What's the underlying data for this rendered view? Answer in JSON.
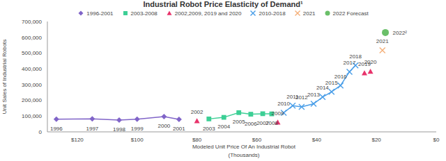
{
  "chart_data": {
    "type": "scatter",
    "title": "Industrial Robot Price Elasticity of Demand¹",
    "xlabel": "Modeled Unit Price Of An Industrial Robot\n(Thousands)",
    "ylabel": "Unit Sales of Industrial Robots",
    "xlim": [
      130,
      0
    ],
    "xticks": [
      {
        "value": 120,
        "label": "$120"
      },
      {
        "value": 100,
        "label": "$100"
      },
      {
        "value": 80,
        "label": "$80"
      },
      {
        "value": 60,
        "label": "$60"
      },
      {
        "value": 40,
        "label": "$40"
      },
      {
        "value": 20,
        "label": "$20"
      },
      {
        "value": 0,
        "label": "$0"
      }
    ],
    "ylim": [
      0,
      700000
    ],
    "yticks": [
      0,
      {
        "value": 100000,
        "label": "100,000"
      },
      {
        "value": 200000,
        "label": "200,000"
      },
      {
        "value": 300000,
        "label": "300,000"
      },
      {
        "value": 400000,
        "label": "400,000"
      },
      {
        "value": 500000,
        "label": "500,000"
      },
      {
        "value": 600000,
        "label": "600,000"
      },
      {
        "value": 700000,
        "label": "700,000"
      }
    ],
    "grid": false,
    "legend": "top",
    "series": [
      {
        "name": "1996-2001",
        "color": "#8064c8",
        "marker": "diamond",
        "line_style": "solid",
        "x": [
          127,
          115,
          106,
          100,
          91,
          86
        ],
        "values": [
          80000,
          82000,
          75000,
          80000,
          97000,
          79000
        ],
        "point_labels": [
          "1996",
          "1997",
          "1998",
          "1999",
          "2000",
          "2001"
        ]
      },
      {
        "name": "2003-2008",
        "color": "#3ccf95",
        "marker": "square",
        "line_style": "solid",
        "x": [
          76,
          71,
          66,
          62,
          58,
          55
        ],
        "values": [
          82000,
          92000,
          122000,
          112000,
          115000,
          114000
        ],
        "point_labels": [
          "2003",
          "2004",
          "2005",
          "2006",
          "2007",
          "2008"
        ]
      },
      {
        "name": "2002,2009, 2019 and 2020",
        "color": "#e8336b",
        "marker": "triangle",
        "line_style": "none",
        "x": [
          80,
          53,
          24,
          22
        ],
        "values": [
          69000,
          60000,
          373000,
          383000
        ],
        "point_labels": [
          "2002",
          "2009",
          "2019",
          "2020"
        ]
      },
      {
        "name": "2010-2018",
        "color": "#4a9ee8",
        "marker": "x",
        "line_style": "solid",
        "x": [
          51,
          48,
          45,
          41,
          38,
          35,
          32,
          29,
          27
        ],
        "values": [
          121000,
          166000,
          159000,
          178000,
          221000,
          254000,
          294000,
          381000,
          422000
        ],
        "point_labels": [
          "2010",
          "2011",
          "2012",
          "2013",
          "2014",
          "2015",
          "2016",
          "2017",
          "2018"
        ]
      },
      {
        "name": "2021",
        "color": "#f5b07a",
        "marker": "x",
        "line_style": "none",
        "x": [
          18
        ],
        "values": [
          517000
        ],
        "point_labels": [
          "2021"
        ]
      },
      {
        "name": "2022 Forecast",
        "color": "#6abf69",
        "marker": "circle",
        "line_style": "none",
        "x": [
          17
        ],
        "values": [
          630000
        ],
        "point_labels": [
          "2022²"
        ]
      }
    ]
  }
}
